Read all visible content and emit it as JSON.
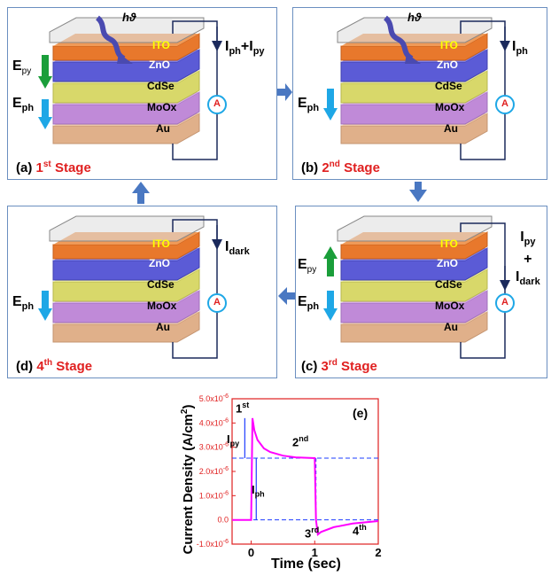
{
  "photon_symbol": "hϑ",
  "layers": [
    "ITO",
    "ZnO",
    "CdSe",
    "MoOx",
    "Au"
  ],
  "ammeter": "A",
  "field_labels": {
    "E_py_main": "E",
    "E_py_sub": "py",
    "E_ph_main": "E",
    "E_ph_sub": "ph"
  },
  "panels": {
    "a": {
      "letter": "(a)",
      "ordinal": "1",
      "suffix": "st",
      "stage": "Stage",
      "current": {
        "part1_main": "I",
        "part1_sub": "ph",
        "plus": "+",
        "part2_main": "I",
        "part2_sub": "py"
      }
    },
    "b": {
      "letter": "(b)",
      "ordinal": "2",
      "suffix": "nd",
      "stage": "Stage",
      "current": {
        "main": "I",
        "sub": "ph"
      }
    },
    "c": {
      "letter": "(c)",
      "ordinal": "3",
      "suffix": "rd",
      "stage": "Stage",
      "current": {
        "top_main": "I",
        "top_sub": "py",
        "plus": "+",
        "bottom_main": "I",
        "bottom_sub": "dark"
      }
    },
    "d": {
      "letter": "(d)",
      "ordinal": "4",
      "suffix": "th",
      "stage": "Stage",
      "current": {
        "main": "I",
        "sub": "dark"
      }
    }
  },
  "colors": {
    "ito": "#e8782c",
    "zno": "#5b5bd6",
    "cdse": "#d8d86a",
    "moox": "#c08ad8",
    "au": "#e0b08a",
    "panel_border": "#6b8fc0",
    "field_blue": "#1ea7e6",
    "field_green": "#1a9e3a",
    "flow_arrow": "#4a78c2",
    "stage_red": "#e02020",
    "trace": "#ff00ff"
  },
  "chart_data": {
    "type": "line",
    "panel_label": "(e)",
    "xlabel": "Time (sec)",
    "ylabel": "Current Density (A/cm²)",
    "ylabel_main": "Current Density (A/cm",
    "ylabel_sup": "2",
    "ylabel_close": ")",
    "xlim": [
      -0.3,
      2.0
    ],
    "ylim": [
      -1e-06,
      5e-06
    ],
    "x_ticks": [
      "0",
      "1",
      "2"
    ],
    "y_ticks": [
      "5.0x10",
      "4.0x10",
      "3.0x10",
      "2.0x10",
      "1.0x10",
      "0.0",
      "-1.0x10"
    ],
    "y_tick_exp": "-6",
    "series": [
      {
        "values": [
          [
            -0.3,
            0
          ],
          [
            -0.05,
            0
          ],
          [
            0.0,
            0
          ],
          [
            0.02,
            4.2e-06
          ],
          [
            0.05,
            3.7e-06
          ],
          [
            0.1,
            3.3e-06
          ],
          [
            0.2,
            2.95e-06
          ],
          [
            0.3,
            2.8e-06
          ],
          [
            0.5,
            2.65e-06
          ],
          [
            0.7,
            2.58e-06
          ],
          [
            1.0,
            2.55e-06
          ],
          [
            1.02,
            0
          ],
          [
            1.05,
            -6e-07
          ],
          [
            1.1,
            -5e-07
          ],
          [
            1.3,
            -3e-07
          ],
          [
            1.6,
            -1.5e-07
          ],
          [
            2.0,
            -5e-08
          ]
        ]
      }
    ],
    "annotations": {
      "s1": {
        "main": "1",
        "sup": "st"
      },
      "s2": {
        "main": "2",
        "sup": "nd"
      },
      "s3": {
        "main": "3",
        "sup": "rd"
      },
      "s4": {
        "main": "4",
        "sup": "th"
      },
      "ipy": {
        "main": "I",
        "sub": "py"
      },
      "iph": {
        "main": "I",
        "sub": "ph"
      }
    },
    "reference_levels": [
      2.55e-06,
      0
    ]
  }
}
